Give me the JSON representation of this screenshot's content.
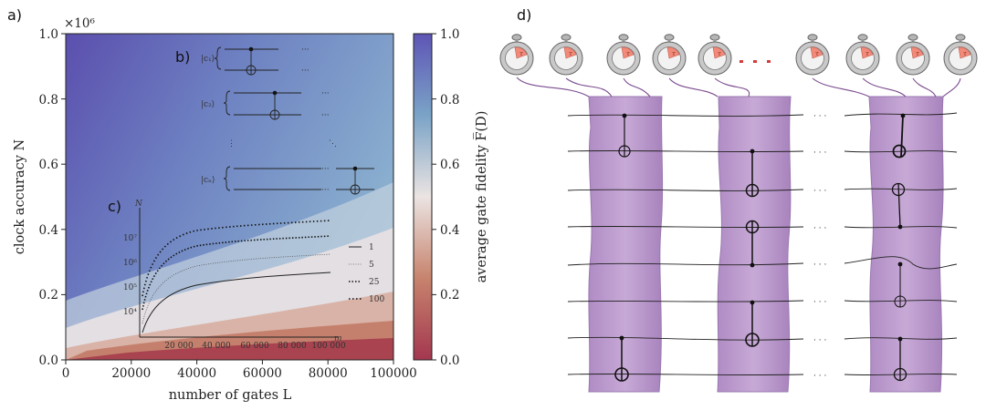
{
  "panel_labels": {
    "a": "a)",
    "b": "b)",
    "c": "c)",
    "d": "d)"
  },
  "chart_data": [
    {
      "type": "heatmap",
      "xlabel": "number of gates L",
      "ylabel": "clock accuracy N",
      "x_ticks": [
        "0",
        "20000",
        "40000",
        "60000",
        "80000",
        "100000"
      ],
      "y_ticks": [
        "0.0",
        "0.2",
        "0.4",
        "0.6",
        "0.8",
        "1.0"
      ],
      "y_scale_label": "×10⁶",
      "xlim": [
        0,
        100000
      ],
      "ylim": [
        0,
        1000000
      ],
      "colorbar": {
        "label": "average gate fidelity F̅(D)",
        "ticks": [
          "0.0",
          "0.2",
          "0.4",
          "0.6",
          "0.8",
          "1.0"
        ],
        "range": [
          0,
          1
        ],
        "colors": [
          "#a3374f",
          "#c7836d",
          "#e8e2e0",
          "#7aa3c7",
          "#5e55b5"
        ]
      }
    },
    {
      "type": "line",
      "xlabel": "m",
      "ylabel": "N",
      "x_ticks": [
        "20 000",
        "40 000",
        "60 000",
        "80 000",
        "100 000"
      ],
      "y_ticks": [
        "10⁴",
        "10⁵",
        "10⁶",
        "10⁷"
      ],
      "log_y": true,
      "legend": [
        "1",
        "5",
        "25",
        "100"
      ],
      "legend_position": "right"
    }
  ],
  "circuit_b": {
    "rows": [
      {
        "label": "|c₁⟩",
        "dots": "···"
      },
      {
        "label": "|c₂⟩",
        "dots": "···"
      },
      {
        "label": "|cₙ⟩",
        "dots": "···"
      }
    ]
  }
}
